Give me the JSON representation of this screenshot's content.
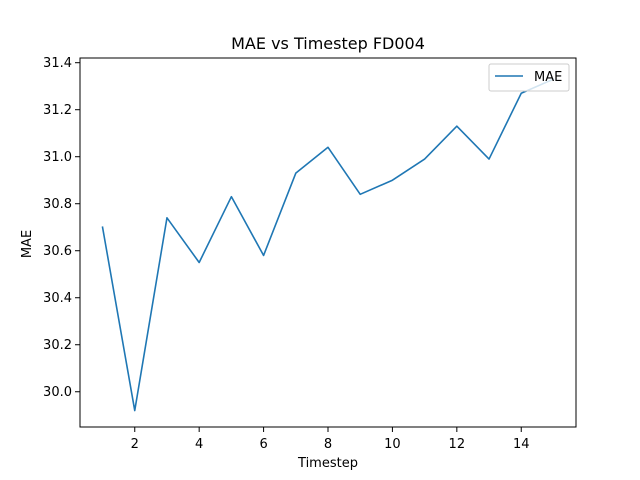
{
  "chart_data": {
    "type": "line",
    "title": "MAE vs Timestep FD004",
    "xlabel": "Timestep",
    "ylabel": "MAE",
    "xlim": [
      0.3,
      15.7
    ],
    "ylim": [
      29.85,
      31.42
    ],
    "xticks": [
      2,
      4,
      6,
      8,
      10,
      12,
      14
    ],
    "yticks": [
      30.0,
      30.2,
      30.4,
      30.6,
      30.8,
      31.0,
      31.2,
      31.4
    ],
    "xtick_labels": [
      "2",
      "4",
      "6",
      "8",
      "10",
      "12",
      "14"
    ],
    "ytick_labels": [
      "30.0",
      "30.2",
      "30.4",
      "30.6",
      "30.8",
      "31.0",
      "31.2",
      "31.4"
    ],
    "grid": false,
    "legend_position": "top-right",
    "series": [
      {
        "name": "MAE",
        "color": "#1f77b4",
        "x": [
          1,
          2,
          3,
          4,
          5,
          6,
          7,
          8,
          9,
          10,
          11,
          12,
          13,
          14,
          15
        ],
        "y": [
          30.7,
          29.92,
          30.74,
          30.55,
          30.83,
          30.58,
          30.93,
          31.04,
          30.84,
          30.9,
          30.99,
          31.13,
          30.99,
          31.27,
          31.33
        ]
      }
    ]
  }
}
